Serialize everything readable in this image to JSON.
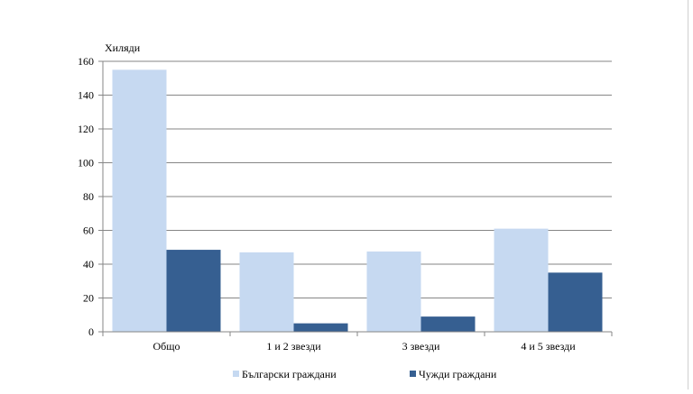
{
  "chart_data": {
    "type": "bar",
    "ylabel": "Хиляди",
    "categories": [
      "Общо",
      "1 и 2 звезди",
      "3 звезди",
      "4 и 5 звезди"
    ],
    "series": [
      {
        "name": "Български граждани",
        "color": "#c6d9f1",
        "values": [
          155,
          47,
          47.5,
          61
        ]
      },
      {
        "name": "Чужди граждани",
        "color": "#365f91",
        "values": [
          48.5,
          5,
          9,
          35
        ]
      }
    ],
    "ylim": [
      0,
      160
    ],
    "yticks": [
      0,
      20,
      40,
      60,
      80,
      100,
      120,
      140,
      160
    ],
    "grid": true,
    "legend_position": "bottom"
  }
}
